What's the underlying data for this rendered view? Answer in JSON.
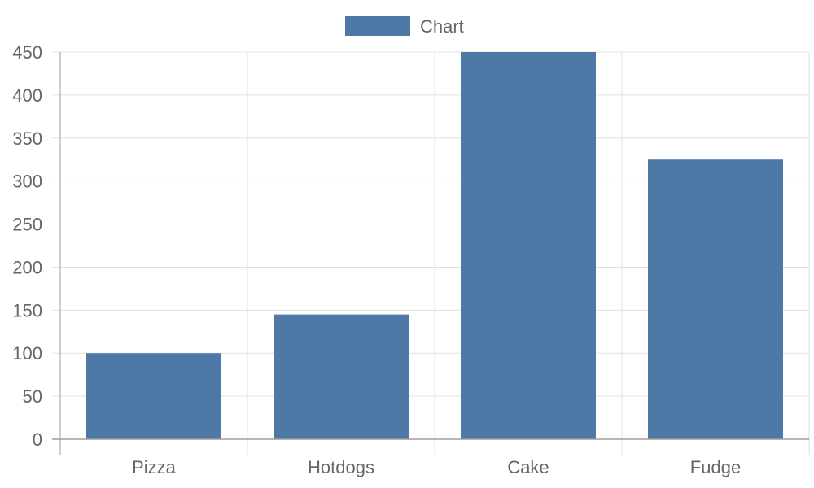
{
  "chart_data": {
    "type": "bar",
    "categories": [
      "Pizza",
      "Hotdogs",
      "Cake",
      "Fudge"
    ],
    "series": [
      {
        "name": "Chart",
        "values": [
          100,
          145,
          450,
          325
        ],
        "color": "#4e79a7"
      }
    ],
    "title": "",
    "xlabel": "",
    "ylabel": "",
    "ylim": [
      0,
      450
    ],
    "yticks": [
      0,
      50,
      100,
      150,
      200,
      250,
      300,
      350,
      400,
      450
    ],
    "grid": true,
    "legend_position": "top-center"
  },
  "colors": {
    "grid": "#e0e0e0",
    "axis": "#9e9e9e",
    "text": "#666666"
  }
}
